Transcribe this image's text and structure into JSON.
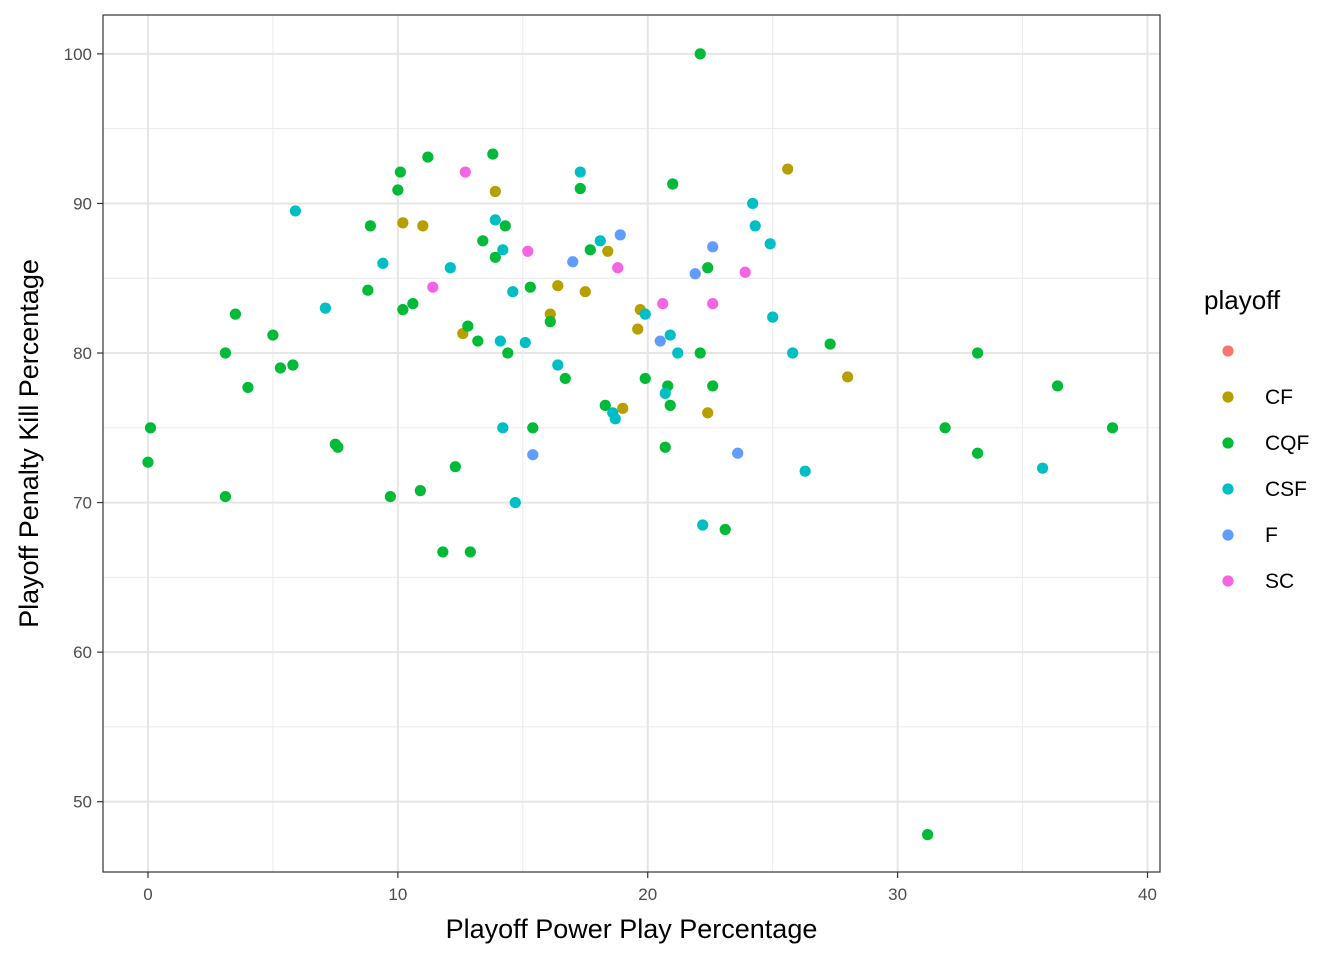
{
  "chart_data": {
    "type": "scatter",
    "xlabel": "Playoff Power Play Percentage",
    "ylabel": "Playoff Penalty Kill Percentage",
    "xlim": [
      -1.8,
      40.5
    ],
    "ylim": [
      45.3,
      102.6
    ],
    "x_ticks": [
      0,
      10,
      20,
      30,
      40
    ],
    "y_ticks": [
      50,
      60,
      70,
      80,
      90,
      100
    ],
    "x_tick_labels": [
      "0",
      "10",
      "20",
      "30",
      "40"
    ],
    "y_tick_labels": [
      "50",
      "60",
      "70",
      "80",
      "90",
      "100"
    ],
    "grid": true,
    "legend": {
      "title": "playoff",
      "position": "right",
      "entries": [
        {
          "label": "",
          "color": "#F8766D"
        },
        {
          "label": "CF",
          "color": "#B79F00"
        },
        {
          "label": "CQF",
          "color": "#00BA38"
        },
        {
          "label": "CSF",
          "color": "#00BFC4"
        },
        {
          "label": "F",
          "color": "#619CFF"
        },
        {
          "label": "SC",
          "color": "#F564E3"
        }
      ]
    },
    "series": [
      {
        "name": "CF",
        "color": "#B79F00",
        "points": [
          [
            10.2,
            88.7
          ],
          [
            11.0,
            88.5
          ],
          [
            13.9,
            90.8
          ],
          [
            12.6,
            81.3
          ],
          [
            16.1,
            82.6
          ],
          [
            16.4,
            84.5
          ],
          [
            17.5,
            84.1
          ],
          [
            18.4,
            86.8
          ],
          [
            19.6,
            81.6
          ],
          [
            19.7,
            82.9
          ],
          [
            19.0,
            76.3
          ],
          [
            22.4,
            76.0
          ],
          [
            25.6,
            92.3
          ],
          [
            28.0,
            78.4
          ]
        ]
      },
      {
        "name": "CQF",
        "color": "#00BA38",
        "points": [
          [
            0.1,
            75.0
          ],
          [
            0.0,
            72.7
          ],
          [
            3.1,
            80.0
          ],
          [
            3.1,
            70.4
          ],
          [
            3.5,
            82.6
          ],
          [
            4.0,
            77.7
          ],
          [
            5.0,
            81.2
          ],
          [
            5.3,
            79.0
          ],
          [
            5.8,
            79.2
          ],
          [
            7.5,
            73.9
          ],
          [
            7.6,
            73.7
          ],
          [
            8.8,
            84.2
          ],
          [
            8.9,
            88.5
          ],
          [
            9.7,
            70.4
          ],
          [
            10.0,
            90.9
          ],
          [
            10.1,
            92.1
          ],
          [
            10.2,
            82.9
          ],
          [
            10.6,
            83.3
          ],
          [
            10.9,
            70.8
          ],
          [
            11.2,
            93.1
          ],
          [
            11.8,
            66.7
          ],
          [
            12.3,
            72.4
          ],
          [
            12.8,
            81.8
          ],
          [
            12.9,
            66.7
          ],
          [
            13.2,
            80.8
          ],
          [
            13.4,
            87.5
          ],
          [
            13.8,
            93.3
          ],
          [
            13.9,
            86.4
          ],
          [
            14.3,
            88.5
          ],
          [
            14.4,
            80.0
          ],
          [
            15.3,
            84.4
          ],
          [
            15.4,
            75.0
          ],
          [
            16.1,
            82.1
          ],
          [
            16.7,
            78.3
          ],
          [
            17.3,
            91.0
          ],
          [
            17.7,
            86.9
          ],
          [
            18.3,
            76.5
          ],
          [
            19.9,
            78.3
          ],
          [
            20.7,
            73.7
          ],
          [
            20.8,
            77.8
          ],
          [
            20.9,
            76.5
          ],
          [
            21.0,
            91.3
          ],
          [
            22.1,
            80.0
          ],
          [
            22.1,
            100.0
          ],
          [
            22.4,
            85.7
          ],
          [
            22.6,
            77.8
          ],
          [
            23.1,
            68.2
          ],
          [
            27.3,
            80.6
          ],
          [
            31.2,
            47.8
          ],
          [
            31.9,
            75.0
          ],
          [
            33.2,
            80.0
          ],
          [
            33.2,
            73.3
          ],
          [
            36.4,
            77.8
          ],
          [
            38.6,
            75.0
          ]
        ]
      },
      {
        "name": "CSF",
        "color": "#00BFC4",
        "points": [
          [
            5.9,
            89.5
          ],
          [
            7.1,
            83.0
          ],
          [
            9.4,
            86.0
          ],
          [
            12.1,
            85.7
          ],
          [
            13.9,
            88.9
          ],
          [
            14.1,
            80.8
          ],
          [
            14.2,
            86.9
          ],
          [
            14.2,
            75.0
          ],
          [
            14.6,
            84.1
          ],
          [
            14.7,
            70.0
          ],
          [
            15.1,
            80.7
          ],
          [
            16.4,
            79.2
          ],
          [
            17.3,
            92.1
          ],
          [
            18.1,
            87.5
          ],
          [
            18.6,
            76.0
          ],
          [
            18.7,
            75.6
          ],
          [
            19.9,
            82.6
          ],
          [
            20.7,
            77.3
          ],
          [
            20.9,
            81.2
          ],
          [
            21.2,
            80.0
          ],
          [
            22.2,
            68.5
          ],
          [
            24.2,
            90.0
          ],
          [
            24.3,
            88.5
          ],
          [
            24.9,
            87.3
          ],
          [
            25.0,
            82.4
          ],
          [
            25.8,
            80.0
          ],
          [
            26.3,
            72.1
          ],
          [
            35.8,
            72.3
          ]
        ]
      },
      {
        "name": "F",
        "color": "#619CFF",
        "points": [
          [
            15.4,
            73.2
          ],
          [
            17.0,
            86.1
          ],
          [
            18.9,
            87.9
          ],
          [
            20.5,
            80.8
          ],
          [
            21.9,
            85.3
          ],
          [
            22.6,
            87.1
          ],
          [
            23.6,
            73.3
          ]
        ]
      },
      {
        "name": "SC",
        "color": "#F564E3",
        "points": [
          [
            11.4,
            84.4
          ],
          [
            12.7,
            92.1
          ],
          [
            15.2,
            86.8
          ],
          [
            18.8,
            85.7
          ],
          [
            20.6,
            83.3
          ],
          [
            22.6,
            83.3
          ],
          [
            23.9,
            85.4
          ]
        ]
      }
    ]
  }
}
